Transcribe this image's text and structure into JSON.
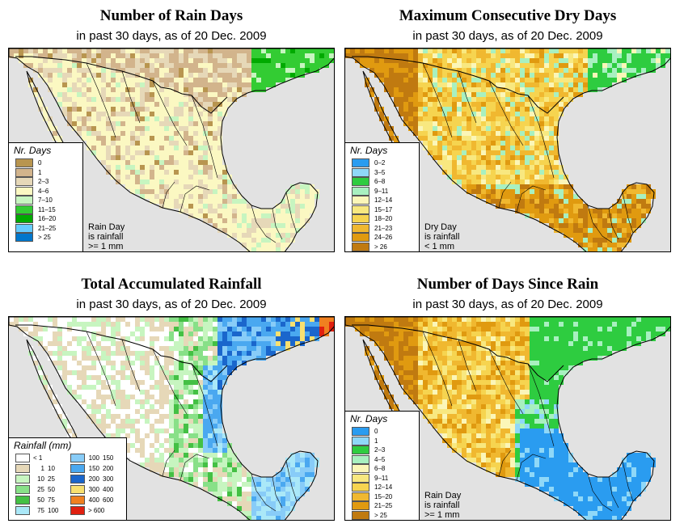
{
  "panels": [
    {
      "id": "rain-days",
      "title": "Number of Rain Days",
      "subtitle": "in past 30 days, as of  20 Dec. 2009",
      "legend_title": "Nr. Days",
      "legend": [
        {
          "label": "0",
          "color": "#b8954f"
        },
        {
          "label": "1",
          "color": "#d2b48c"
        },
        {
          "label": "2–3",
          "color": "#e6d8b8"
        },
        {
          "label": "4–6",
          "color": "#fbf8c2"
        },
        {
          "label": "7–10",
          "color": "#c7f5c0"
        },
        {
          "label": "11–15",
          "color": "#33cc33"
        },
        {
          "label": "16–20",
          "color": "#00aa00"
        },
        {
          "label": "21–25",
          "color": "#66ccff"
        },
        {
          "label": "> 25",
          "color": "#0077cc"
        }
      ],
      "note": [
        "Rain Day",
        "is rainfall",
        ">= 1 mm"
      ]
    },
    {
      "id": "max-dry-days",
      "title": "Maximum Consecutive Dry Days",
      "subtitle": "in past 30 days, as of  20 Dec. 2009",
      "legend_title": "Nr. Days",
      "legend": [
        {
          "label": "0–2",
          "color": "#2a9cf0"
        },
        {
          "label": "3–5",
          "color": "#8fd8f8"
        },
        {
          "label": "6–8",
          "color": "#2ecc40"
        },
        {
          "label": "9–11",
          "color": "#a8f0c0"
        },
        {
          "label": "12–14",
          "color": "#fbf6b8"
        },
        {
          "label": "15–17",
          "color": "#f8e880"
        },
        {
          "label": "18–20",
          "color": "#f6d450"
        },
        {
          "label": "21–23",
          "color": "#f0b830"
        },
        {
          "label": "24–26",
          "color": "#e09a10"
        },
        {
          "label": "> 26",
          "color": "#c07a10"
        }
      ],
      "note": [
        "Dry Day",
        "is rainfall",
        "< 1 mm"
      ]
    },
    {
      "id": "total-rainfall",
      "title": "Total Accumulated Rainfall",
      "subtitle": "in past 30 days, as of  20 Dec. 2009",
      "legend_title": "Rainfall (mm)",
      "legend": [
        {
          "from": "< 1",
          "to": "",
          "color": "#ffffff"
        },
        {
          "from": "1",
          "to": "10",
          "color": "#e6d8b8"
        },
        {
          "from": "10",
          "to": "25",
          "color": "#c7f5c0"
        },
        {
          "from": "25",
          "to": "50",
          "color": "#88e088"
        },
        {
          "from": "50",
          "to": "75",
          "color": "#44c044"
        },
        {
          "from": "75",
          "to": "100",
          "color": "#aae8f8"
        },
        {
          "from": "100",
          "to": "150",
          "color": "#88ccf8"
        },
        {
          "from": "150",
          "to": "200",
          "color": "#4aa8f0"
        },
        {
          "from": "200",
          "to": "300",
          "color": "#1a66cc"
        },
        {
          "from": "300",
          "to": "400",
          "color": "#f8e070"
        },
        {
          "from": "400",
          "to": "600",
          "color": "#f08020"
        },
        {
          "from": "> 600",
          "to": "",
          "color": "#e02010"
        }
      ],
      "note": []
    },
    {
      "id": "days-since-rain",
      "title": "Number of Days Since Rain",
      "subtitle": "in past 30 days, as of  20 Dec. 2009",
      "legend_title": "Nr. Days",
      "legend": [
        {
          "label": "0",
          "color": "#2a9cf0"
        },
        {
          "label": "1",
          "color": "#8fd8f8"
        },
        {
          "label": "2–3",
          "color": "#2ecc40"
        },
        {
          "label": "4–5",
          "color": "#a8f0c0"
        },
        {
          "label": "6–8",
          "color": "#fbf6b8"
        },
        {
          "label": "9–11",
          "color": "#f8e880"
        },
        {
          "label": "12–14",
          "color": "#f6d450"
        },
        {
          "label": "15–20",
          "color": "#f0b830"
        },
        {
          "label": "21–25",
          "color": "#e09a10"
        },
        {
          "label": "> 25",
          "color": "#c07a10"
        }
      ],
      "note": [
        "Rain Day",
        "is rainfall",
        ">= 1 mm"
      ]
    }
  ],
  "colors": {
    "ocean": "#e2e2e2",
    "us_land": "#e9e9e9",
    "border": "#000000"
  }
}
